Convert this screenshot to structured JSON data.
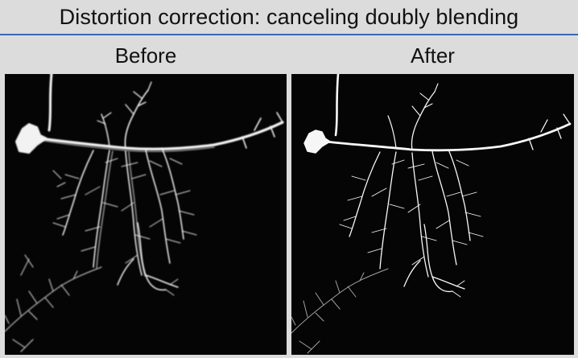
{
  "title": "Distortion correction: canceling doubly blending",
  "panels": [
    {
      "label": "Before",
      "image": "neuron micrograph with blurred, doubled dendrite branches"
    },
    {
      "label": "After",
      "image": "neuron micrograph with sharp, corrected dendrite branches"
    }
  ],
  "colors": {
    "background": "#dcdcdc",
    "title_rule": "#3a66b8",
    "image_background": "#050505",
    "neuron": "#ffffff"
  }
}
